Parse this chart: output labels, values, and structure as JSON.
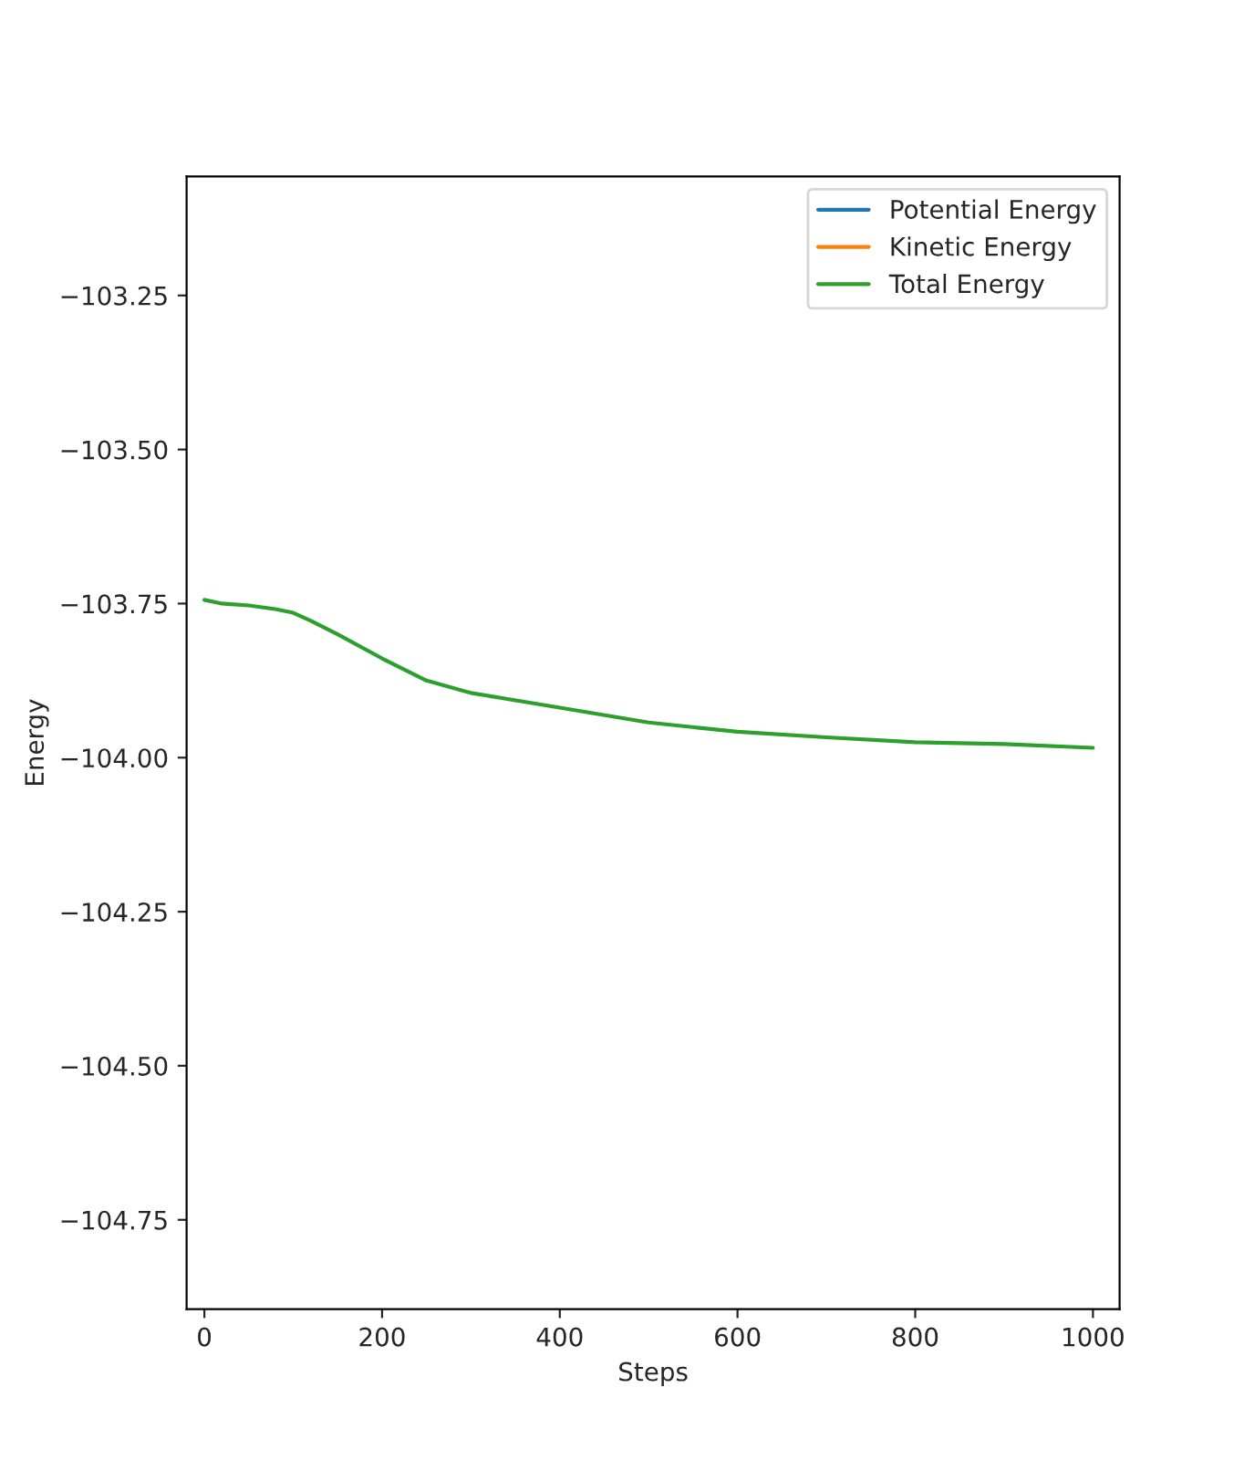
{
  "chart_data": {
    "type": "line",
    "xlabel": "Steps",
    "ylabel": "Energy",
    "x": [
      0,
      20,
      50,
      80,
      100,
      120,
      150,
      200,
      250,
      300,
      400,
      500,
      600,
      700,
      800,
      900,
      1000
    ],
    "series": [
      {
        "name": "Potential Energy",
        "color": "#1f77b4",
        "values": [
          null,
          null,
          null,
          null,
          null,
          null,
          null,
          null,
          null,
          null,
          null,
          null,
          null,
          null,
          null,
          null,
          null
        ]
      },
      {
        "name": "Kinetic Energy",
        "color": "#ff7f0e",
        "values": [
          null,
          null,
          null,
          null,
          null,
          null,
          null,
          null,
          null,
          null,
          null,
          null,
          null,
          null,
          null,
          null,
          null
        ]
      },
      {
        "name": "Total Energy",
        "color": "#2ca02c",
        "values": [
          -103.744,
          -103.75,
          -103.753,
          -103.759,
          -103.765,
          -103.778,
          -103.8,
          -103.839,
          -103.875,
          -103.895,
          -103.919,
          -103.943,
          -103.958,
          -103.967,
          -103.975,
          -103.978,
          -103.984
        ]
      }
    ],
    "xlim": [
      -20,
      1030
    ],
    "ylim": [
      -104.895,
      -103.057
    ],
    "xticks": [
      0,
      200,
      400,
      600,
      800,
      1000
    ],
    "yticks": [
      {
        "value": -103.25,
        "label": "−103.25"
      },
      {
        "value": -103.5,
        "label": "−103.50"
      },
      {
        "value": -103.75,
        "label": "−103.75"
      },
      {
        "value": -104.0,
        "label": "−104.00"
      },
      {
        "value": -104.25,
        "label": "−104.25"
      },
      {
        "value": -104.5,
        "label": "−104.50"
      },
      {
        "value": -104.75,
        "label": "−104.75"
      }
    ],
    "legend": "top right",
    "grid": false,
    "marker": "none",
    "line_style": "solid"
  }
}
